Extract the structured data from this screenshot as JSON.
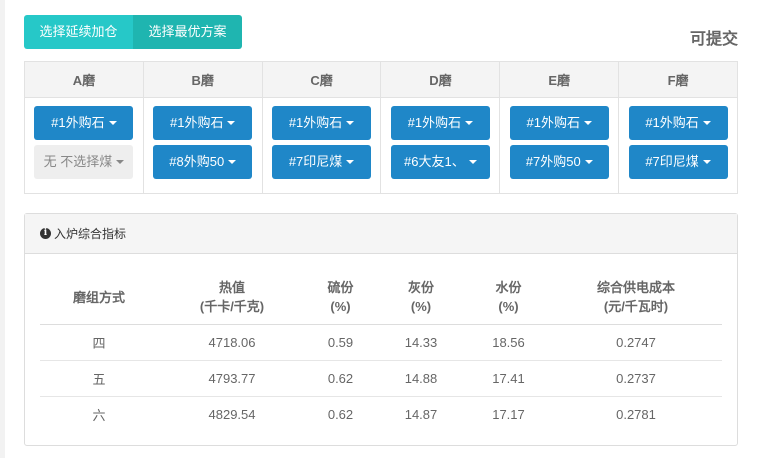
{
  "toolbar": {
    "continue_label": "选择延续加仓",
    "optimal_label": "选择最优方案",
    "status": "可提交"
  },
  "mills": [
    {
      "name": "A磨",
      "selects": [
        {
          "label": "#1外购石",
          "empty": false
        },
        {
          "label": "无 不选择煤",
          "empty": true
        }
      ]
    },
    {
      "name": "B磨",
      "selects": [
        {
          "label": "#1外购石",
          "empty": false
        },
        {
          "label": "#8外购50",
          "empty": false
        }
      ]
    },
    {
      "name": "C磨",
      "selects": [
        {
          "label": "#1外购石",
          "empty": false
        },
        {
          "label": "#7印尼煤",
          "empty": false
        }
      ]
    },
    {
      "name": "D磨",
      "selects": [
        {
          "label": "#1外购石",
          "empty": false
        },
        {
          "label": "#6大友1、",
          "empty": false
        }
      ]
    },
    {
      "name": "E磨",
      "selects": [
        {
          "label": "#1外购石",
          "empty": false
        },
        {
          "label": "#7外购50",
          "empty": false
        }
      ]
    },
    {
      "name": "F磨",
      "selects": [
        {
          "label": "#1外购石",
          "empty": false
        },
        {
          "label": "#7印尼煤",
          "empty": false
        }
      ]
    }
  ],
  "panel": {
    "title": "入炉综合指标",
    "icon": "info-circle-icon",
    "headers": [
      [
        "磨组方式",
        ""
      ],
      [
        "热值",
        "(千卡/千克)"
      ],
      [
        "硫份",
        "(%)"
      ],
      [
        "灰份",
        "(%)"
      ],
      [
        "水份",
        "(%)"
      ],
      [
        "综合供电成本",
        "(元/千瓦时)"
      ]
    ],
    "rows": [
      [
        "四",
        "4718.06",
        "0.59",
        "14.33",
        "18.56",
        "0.2747"
      ],
      [
        "五",
        "4793.77",
        "0.62",
        "14.88",
        "17.41",
        "0.2737"
      ],
      [
        "六",
        "4829.54",
        "0.62",
        "14.87",
        "17.17",
        "0.2781"
      ]
    ]
  },
  "colors": {
    "teal": "#26c8c8",
    "blue": "#1f87c8"
  }
}
